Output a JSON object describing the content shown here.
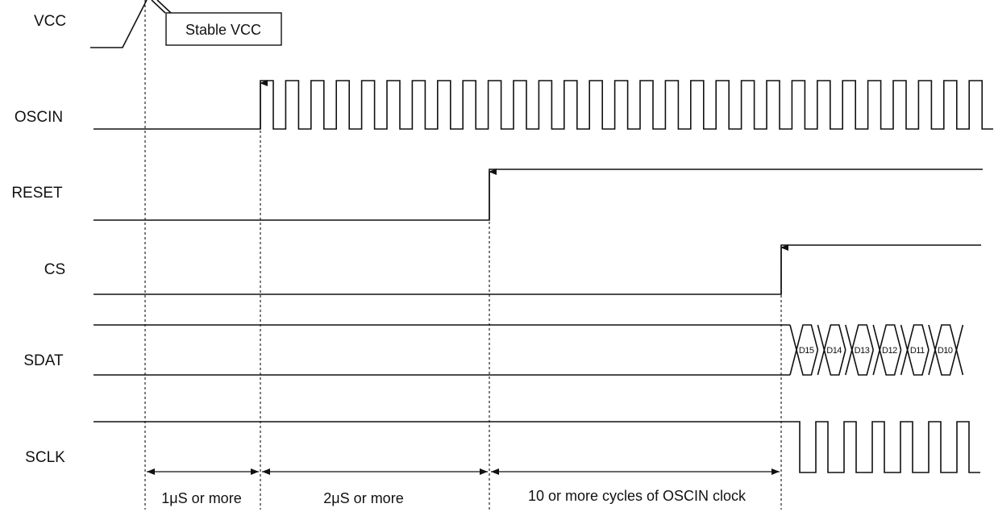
{
  "signals": [
    {
      "id": "vcc",
      "label": "VCC"
    },
    {
      "id": "oscin",
      "label": "OSCIN"
    },
    {
      "id": "reset",
      "label": "RESET"
    },
    {
      "id": "cs",
      "label": "CS"
    },
    {
      "id": "sdat",
      "label": "SDAT"
    },
    {
      "id": "sclk",
      "label": "SCLK"
    }
  ],
  "callout": {
    "label": "Stable VCC"
  },
  "data_bits": [
    "D15",
    "D14",
    "D13",
    "D12",
    "D11",
    "D10"
  ],
  "intervals": [
    {
      "label": "1μS or more"
    },
    {
      "label": "2μS or more"
    },
    {
      "label": "10 or more cycles of OSCIN clock"
    }
  ]
}
